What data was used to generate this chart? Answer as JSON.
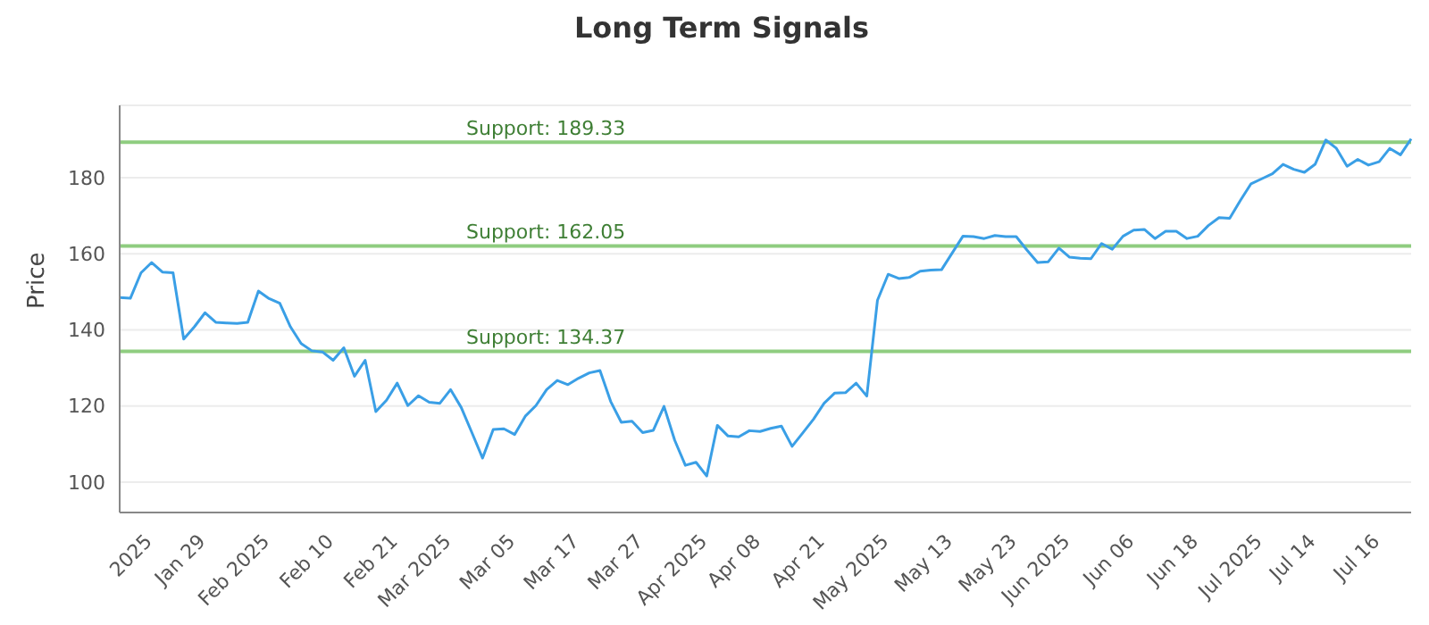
{
  "chart_data": {
    "type": "line",
    "title": "Long Term Signals",
    "ylabel": "Price",
    "categories": [
      null,
      null,
      null,
      "2025",
      null,
      null,
      null,
      null,
      "Jan 29",
      null,
      null,
      null,
      null,
      null,
      "Feb 2025",
      null,
      null,
      null,
      null,
      null,
      "Feb 10",
      null,
      null,
      null,
      null,
      null,
      "Feb 21",
      null,
      null,
      null,
      null,
      "Mar 2025",
      null,
      null,
      null,
      null,
      null,
      "Mar 05",
      null,
      null,
      null,
      null,
      null,
      "Mar 17",
      null,
      null,
      null,
      null,
      null,
      "Mar 27",
      null,
      null,
      null,
      null,
      null,
      "Apr 2025",
      null,
      null,
      null,
      null,
      "Apr 08",
      null,
      null,
      null,
      null,
      null,
      "Apr 21",
      null,
      null,
      null,
      null,
      null,
      "May 2025",
      null,
      null,
      null,
      null,
      null,
      "May 13",
      null,
      null,
      null,
      null,
      null,
      "May 23",
      null,
      null,
      null,
      null,
      "Jun 2025",
      null,
      null,
      null,
      null,
      null,
      "Jun 06",
      null,
      null,
      null,
      null,
      null,
      "Jun 18",
      null,
      null,
      null,
      null,
      null,
      "Jul 2025",
      null,
      null,
      null,
      null,
      "Jul 14",
      null,
      null,
      null,
      null,
      null,
      "Jul 16",
      null,
      null,
      null
    ],
    "series": [
      {
        "color": "#3a9fe6",
        "values": [
          148.5,
          148.3,
          155,
          157.7,
          155.2,
          155,
          137.6,
          140.8,
          144.5,
          142,
          141.8,
          141.7,
          142,
          150.2,
          148.2,
          147,
          140.8,
          136.4,
          134.5,
          134.2,
          132,
          135.3,
          127.8,
          132,
          118.5,
          121.5,
          126,
          120.1,
          122.7,
          121,
          120.7,
          124.3,
          119.6,
          113,
          106.3,
          113.8,
          114,
          112.5,
          117.3,
          120.1,
          124.3,
          126.7,
          125.6,
          127.3,
          128.7,
          129.3,
          121.2,
          115.7,
          116,
          113,
          113.6,
          119.9,
          111,
          104.4,
          105.2,
          101.6,
          114.9,
          112.1,
          111.9,
          113.5,
          113.3,
          114.1,
          114.7,
          109.4,
          112.9,
          116.5,
          120.7,
          123.4,
          123.5,
          126,
          122.6,
          147.8,
          154.6,
          153.5,
          153.8,
          155.4,
          155.7,
          155.8,
          160.2,
          164.6,
          164.5,
          164,
          164.8,
          164.5,
          164.5,
          161,
          157.7,
          157.9,
          161.5,
          159.1,
          158.8,
          158.7,
          162.7,
          161.2,
          164.6,
          166.2,
          166.4,
          164,
          165.9,
          165.9,
          164,
          164.6,
          167.4,
          169.5,
          169.3,
          174,
          178.4,
          179.7,
          181,
          183.5,
          182.2,
          181.4,
          183.5,
          189.9,
          187.7,
          183,
          184.8,
          183.3,
          184.2,
          187.7,
          186,
          190.2
        ]
      }
    ],
    "ylim": [
      92,
      199
    ],
    "yticks": [
      100,
      120,
      140,
      160,
      180
    ],
    "grid": "y",
    "legend": false,
    "marker": "none",
    "line_style": "solid",
    "ref_lines": [
      {
        "axis": "y",
        "value": 189.33,
        "label": "Support: 189.33",
        "color": "#8fcd80"
      },
      {
        "axis": "y",
        "value": 162.05,
        "label": "Support: 162.05",
        "color": "#8fcd80"
      },
      {
        "axis": "y",
        "value": 134.37,
        "label": "Support: 134.37",
        "color": "#8fcd80"
      }
    ]
  }
}
